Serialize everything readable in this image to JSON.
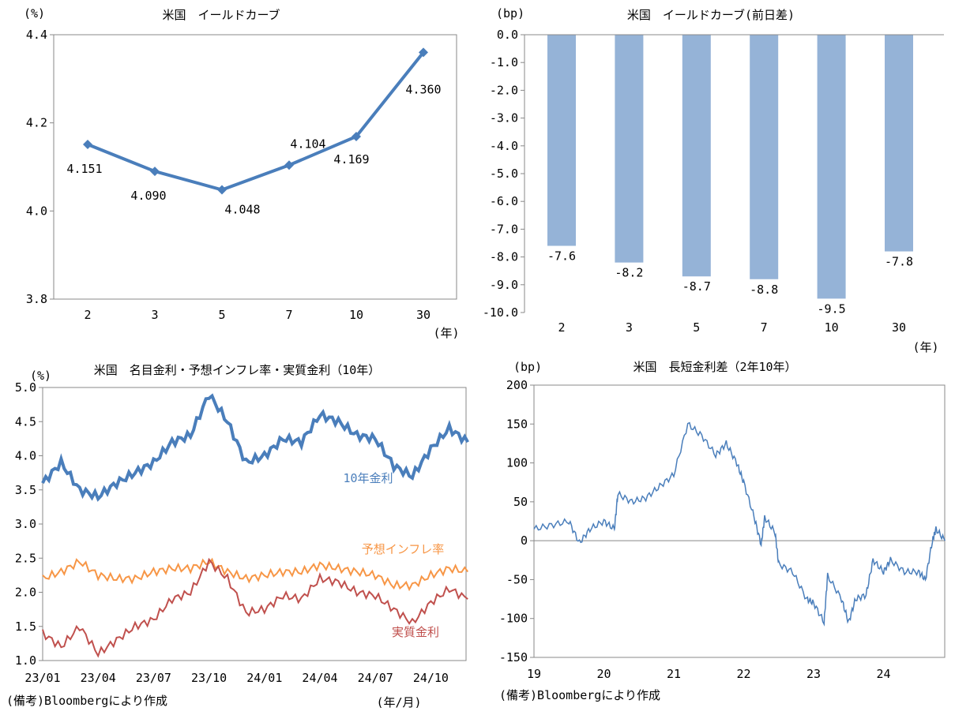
{
  "chart_data": [
    {
      "type": "line",
      "title": "米国　イールドカーブ",
      "ylabel": "(%)",
      "xlabel": "(年)",
      "ylim": [
        3.8,
        4.4
      ],
      "yticks": [
        "3.8",
        "4.0",
        "4.2",
        "4.4"
      ],
      "categories": [
        "2",
        "3",
        "5",
        "7",
        "10",
        "30"
      ],
      "values": [
        4.151,
        4.09,
        4.048,
        4.104,
        4.169,
        4.36
      ],
      "labels": [
        "4.151",
        "4.090",
        "4.048",
        "4.104",
        "4.169",
        "4.360"
      ],
      "color": "#4a7ebb",
      "marker": "diamond",
      "grid": false
    },
    {
      "type": "bar",
      "title": "米国　イールドカーブ(前日差)",
      "ylabel": "(bp)",
      "xlabel": "(年)",
      "ylim": [
        -10,
        0
      ],
      "yticks": [
        "0.0",
        "-1.0",
        "-2.0",
        "-3.0",
        "-4.0",
        "-5.0",
        "-6.0",
        "-7.0",
        "-8.0",
        "-9.0",
        "-10.0"
      ],
      "categories": [
        "2",
        "3",
        "5",
        "7",
        "10",
        "30"
      ],
      "values": [
        -7.6,
        -8.2,
        -8.7,
        -8.8,
        -9.5,
        -7.8
      ],
      "labels": [
        "-7.6",
        "-8.2",
        "-8.7",
        "-8.8",
        "-9.5",
        "-7.8"
      ],
      "color": "#95b3d7",
      "grid": false
    },
    {
      "type": "line",
      "title": "米国　名目金利・予想インフレ率・実質金利（10年）",
      "ylabel": "(%)",
      "xlabel": "(年/月)",
      "ylim": [
        1.0,
        5.0
      ],
      "yticks": [
        "1.0",
        "1.5",
        "2.0",
        "2.5",
        "3.0",
        "3.5",
        "4.0",
        "4.5",
        "5.0"
      ],
      "xticks": [
        "23/01",
        "23/04",
        "23/07",
        "23/10",
        "24/01",
        "24/04",
        "24/07",
        "24/10"
      ],
      "x": [
        "23/01",
        "23/02",
        "23/03",
        "23/04",
        "23/05",
        "23/06",
        "23/07",
        "23/08",
        "23/09",
        "23/10",
        "23/11",
        "23/12",
        "24/01",
        "24/02",
        "24/03",
        "24/04",
        "24/05",
        "24/06",
        "24/07",
        "24/08",
        "24/09",
        "24/10",
        "24/11",
        "24/12"
      ],
      "series": [
        {
          "name": "10年金利",
          "color": "#4a7ebb",
          "values": [
            3.6,
            3.9,
            3.5,
            3.4,
            3.6,
            3.75,
            3.9,
            4.2,
            4.3,
            4.9,
            4.5,
            3.9,
            4.0,
            4.25,
            4.2,
            4.6,
            4.5,
            4.3,
            4.25,
            3.85,
            3.7,
            4.1,
            4.4,
            4.2
          ]
        },
        {
          "name": "予想インフレ率",
          "color": "#f79646",
          "values": [
            2.2,
            2.3,
            2.45,
            2.25,
            2.2,
            2.2,
            2.3,
            2.35,
            2.35,
            2.45,
            2.3,
            2.2,
            2.25,
            2.3,
            2.3,
            2.4,
            2.35,
            2.3,
            2.25,
            2.1,
            2.1,
            2.25,
            2.35,
            2.3
          ]
        },
        {
          "name": "実質金利",
          "color": "#c0504d",
          "values": [
            1.4,
            1.2,
            1.5,
            1.1,
            1.3,
            1.5,
            1.6,
            1.9,
            2.0,
            2.45,
            2.2,
            1.7,
            1.75,
            1.95,
            1.9,
            2.2,
            2.15,
            2.0,
            1.95,
            1.75,
            1.55,
            1.85,
            2.05,
            1.9
          ]
        }
      ],
      "grid": false
    },
    {
      "type": "line",
      "title": "米国　長短金利差（2年10年）",
      "ylabel": "(bp)",
      "ylim": [
        -150,
        200
      ],
      "yticks": [
        "-150",
        "-100",
        "-50",
        "0",
        "50",
        "100",
        "150",
        "200"
      ],
      "xticks": [
        "19",
        "20",
        "21",
        "22",
        "23",
        "24"
      ],
      "x": [
        2019.0,
        2019.25,
        2019.5,
        2019.65,
        2019.8,
        2020.0,
        2020.15,
        2020.2,
        2020.4,
        2020.6,
        2020.8,
        2021.0,
        2021.2,
        2021.4,
        2021.6,
        2021.75,
        2021.9,
        2022.0,
        2022.15,
        2022.25,
        2022.3,
        2022.45,
        2022.5,
        2022.7,
        2022.9,
        2023.0,
        2023.15,
        2023.2,
        2023.4,
        2023.5,
        2023.6,
        2023.75,
        2023.85,
        2024.0,
        2024.1,
        2024.3,
        2024.5,
        2024.6,
        2024.7,
        2024.75,
        2024.88
      ],
      "series": [
        {
          "color": "#4a7ebb",
          "values": [
            15,
            20,
            25,
            -3,
            15,
            25,
            15,
            60,
            50,
            55,
            70,
            85,
            150,
            135,
            110,
            125,
            100,
            75,
            30,
            -5,
            30,
            10,
            -30,
            -40,
            -75,
            -80,
            -105,
            -45,
            -75,
            -105,
            -75,
            -70,
            -25,
            -40,
            -25,
            -40,
            -40,
            -50,
            0,
            15,
            0
          ]
        }
      ],
      "zero_line": true,
      "grid": false
    }
  ],
  "notes": {
    "source_left": "(備考)Bloombergにより作成",
    "source_right": "(備考)Bloombergにより作成"
  }
}
